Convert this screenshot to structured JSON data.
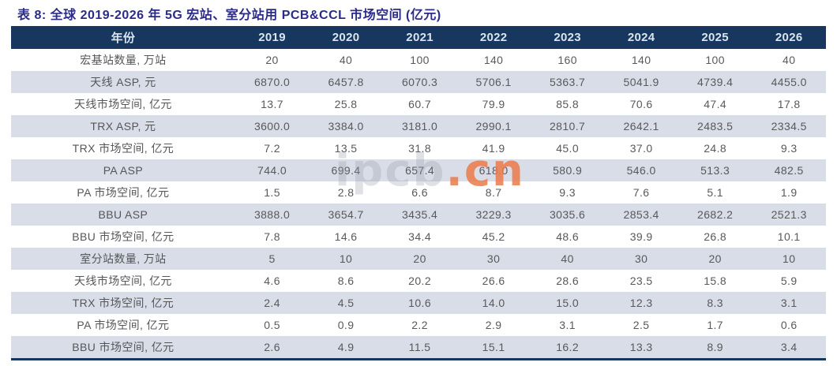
{
  "title": "表 8: 全球 2019-2026 年 5G 宏站、室分站用 PCB&CCL 市场空间 (亿元)",
  "watermark": {
    "gray_text": "ipcb",
    "orange_text": ".cn"
  },
  "colors": {
    "header_bg": "#17375e",
    "header_text": "#d9e4f1",
    "stripe_bg": "#d9dde7",
    "cell_text": "#58595b",
    "title_text": "#2b2b8a",
    "watermark_orange": "#eb7a4a",
    "bottom_border": "#17375e"
  },
  "table": {
    "header": [
      "年份",
      "2019",
      "2020",
      "2021",
      "2022",
      "2023",
      "2024",
      "2025",
      "2026"
    ],
    "rows": [
      {
        "label": "宏基站数量, 万站",
        "values": [
          "20",
          "40",
          "100",
          "140",
          "160",
          "140",
          "100",
          "40"
        ]
      },
      {
        "label": "天线 ASP, 元",
        "values": [
          "6870.0",
          "6457.8",
          "6070.3",
          "5706.1",
          "5363.7",
          "5041.9",
          "4739.4",
          "4455.0"
        ]
      },
      {
        "label": "天线市场空间, 亿元",
        "values": [
          "13.7",
          "25.8",
          "60.7",
          "79.9",
          "85.8",
          "70.6",
          "47.4",
          "17.8"
        ]
      },
      {
        "label": "TRX ASP, 元",
        "values": [
          "3600.0",
          "3384.0",
          "3181.0",
          "2990.1",
          "2810.7",
          "2642.1",
          "2483.5",
          "2334.5"
        ]
      },
      {
        "label": "TRX 市场空间, 亿元",
        "values": [
          "7.2",
          "13.5",
          "31.8",
          "41.9",
          "45.0",
          "37.0",
          "24.8",
          "9.3"
        ]
      },
      {
        "label": "PA ASP",
        "values": [
          "744.0",
          "699.4",
          "657.4",
          "618.0",
          "580.9",
          "546.0",
          "513.3",
          "482.5"
        ]
      },
      {
        "label": "PA 市场空间, 亿元",
        "values": [
          "1.5",
          "2.8",
          "6.6",
          "8.7",
          "9.3",
          "7.6",
          "5.1",
          "1.9"
        ]
      },
      {
        "label": "BBU ASP",
        "values": [
          "3888.0",
          "3654.7",
          "3435.4",
          "3229.3",
          "3035.6",
          "2853.4",
          "2682.2",
          "2521.3"
        ]
      },
      {
        "label": "BBU 市场空间, 亿元",
        "values": [
          "7.8",
          "14.6",
          "34.4",
          "45.2",
          "48.6",
          "39.9",
          "26.8",
          "10.1"
        ]
      },
      {
        "label": "室分站数量, 万站",
        "values": [
          "5",
          "10",
          "20",
          "30",
          "40",
          "30",
          "20",
          "10"
        ]
      },
      {
        "label": "天线市场空间, 亿元",
        "values": [
          "4.6",
          "8.6",
          "20.2",
          "26.6",
          "28.6",
          "23.5",
          "15.8",
          "5.9"
        ]
      },
      {
        "label": "TRX 市场空间, 亿元",
        "values": [
          "2.4",
          "4.5",
          "10.6",
          "14.0",
          "15.0",
          "12.3",
          "8.3",
          "3.1"
        ]
      },
      {
        "label": "PA 市场空间, 亿元",
        "values": [
          "0.5",
          "0.9",
          "2.2",
          "2.9",
          "3.1",
          "2.5",
          "1.7",
          "0.6"
        ]
      },
      {
        "label": "BBU 市场空间, 亿元",
        "values": [
          "2.6",
          "4.9",
          "11.5",
          "15.1",
          "16.2",
          "13.3",
          "8.9",
          "3.4"
        ]
      }
    ]
  },
  "chart_data": {
    "type": "table",
    "title": "表 8: 全球 2019-2026 年 5G 宏站、室分站用 PCB&CCL 市场空间 (亿元)",
    "categories": [
      "2019",
      "2020",
      "2021",
      "2022",
      "2023",
      "2024",
      "2025",
      "2026"
    ],
    "series": [
      {
        "name": "宏基站数量, 万站",
        "values": [
          20,
          40,
          100,
          140,
          160,
          140,
          100,
          40
        ]
      },
      {
        "name": "天线 ASP, 元",
        "values": [
          6870.0,
          6457.8,
          6070.3,
          5706.1,
          5363.7,
          5041.9,
          4739.4,
          4455.0
        ]
      },
      {
        "name": "天线市场空间, 亿元 (宏站)",
        "values": [
          13.7,
          25.8,
          60.7,
          79.9,
          85.8,
          70.6,
          47.4,
          17.8
        ]
      },
      {
        "name": "TRX ASP, 元",
        "values": [
          3600.0,
          3384.0,
          3181.0,
          2990.1,
          2810.7,
          2642.1,
          2483.5,
          2334.5
        ]
      },
      {
        "name": "TRX 市场空间, 亿元 (宏站)",
        "values": [
          7.2,
          13.5,
          31.8,
          41.9,
          45.0,
          37.0,
          24.8,
          9.3
        ]
      },
      {
        "name": "PA ASP",
        "values": [
          744.0,
          699.4,
          657.4,
          618.0,
          580.9,
          546.0,
          513.3,
          482.5
        ]
      },
      {
        "name": "PA 市场空间, 亿元 (宏站)",
        "values": [
          1.5,
          2.8,
          6.6,
          8.7,
          9.3,
          7.6,
          5.1,
          1.9
        ]
      },
      {
        "name": "BBU ASP",
        "values": [
          3888.0,
          3654.7,
          3435.4,
          3229.3,
          3035.6,
          2853.4,
          2682.2,
          2521.3
        ]
      },
      {
        "name": "BBU 市场空间, 亿元 (宏站)",
        "values": [
          7.8,
          14.6,
          34.4,
          45.2,
          48.6,
          39.9,
          26.8,
          10.1
        ]
      },
      {
        "name": "室分站数量, 万站",
        "values": [
          5,
          10,
          20,
          30,
          40,
          30,
          20,
          10
        ]
      },
      {
        "name": "天线市场空间, 亿元 (室分)",
        "values": [
          4.6,
          8.6,
          20.2,
          26.6,
          28.6,
          23.5,
          15.8,
          5.9
        ]
      },
      {
        "name": "TRX 市场空间, 亿元 (室分)",
        "values": [
          2.4,
          4.5,
          10.6,
          14.0,
          15.0,
          12.3,
          8.3,
          3.1
        ]
      },
      {
        "name": "PA 市场空间, 亿元 (室分)",
        "values": [
          0.5,
          0.9,
          2.2,
          2.9,
          3.1,
          2.5,
          1.7,
          0.6
        ]
      },
      {
        "name": "BBU 市场空间, 亿元 (室分)",
        "values": [
          2.6,
          4.9,
          11.5,
          15.1,
          16.2,
          13.3,
          8.9,
          3.4
        ]
      }
    ]
  }
}
